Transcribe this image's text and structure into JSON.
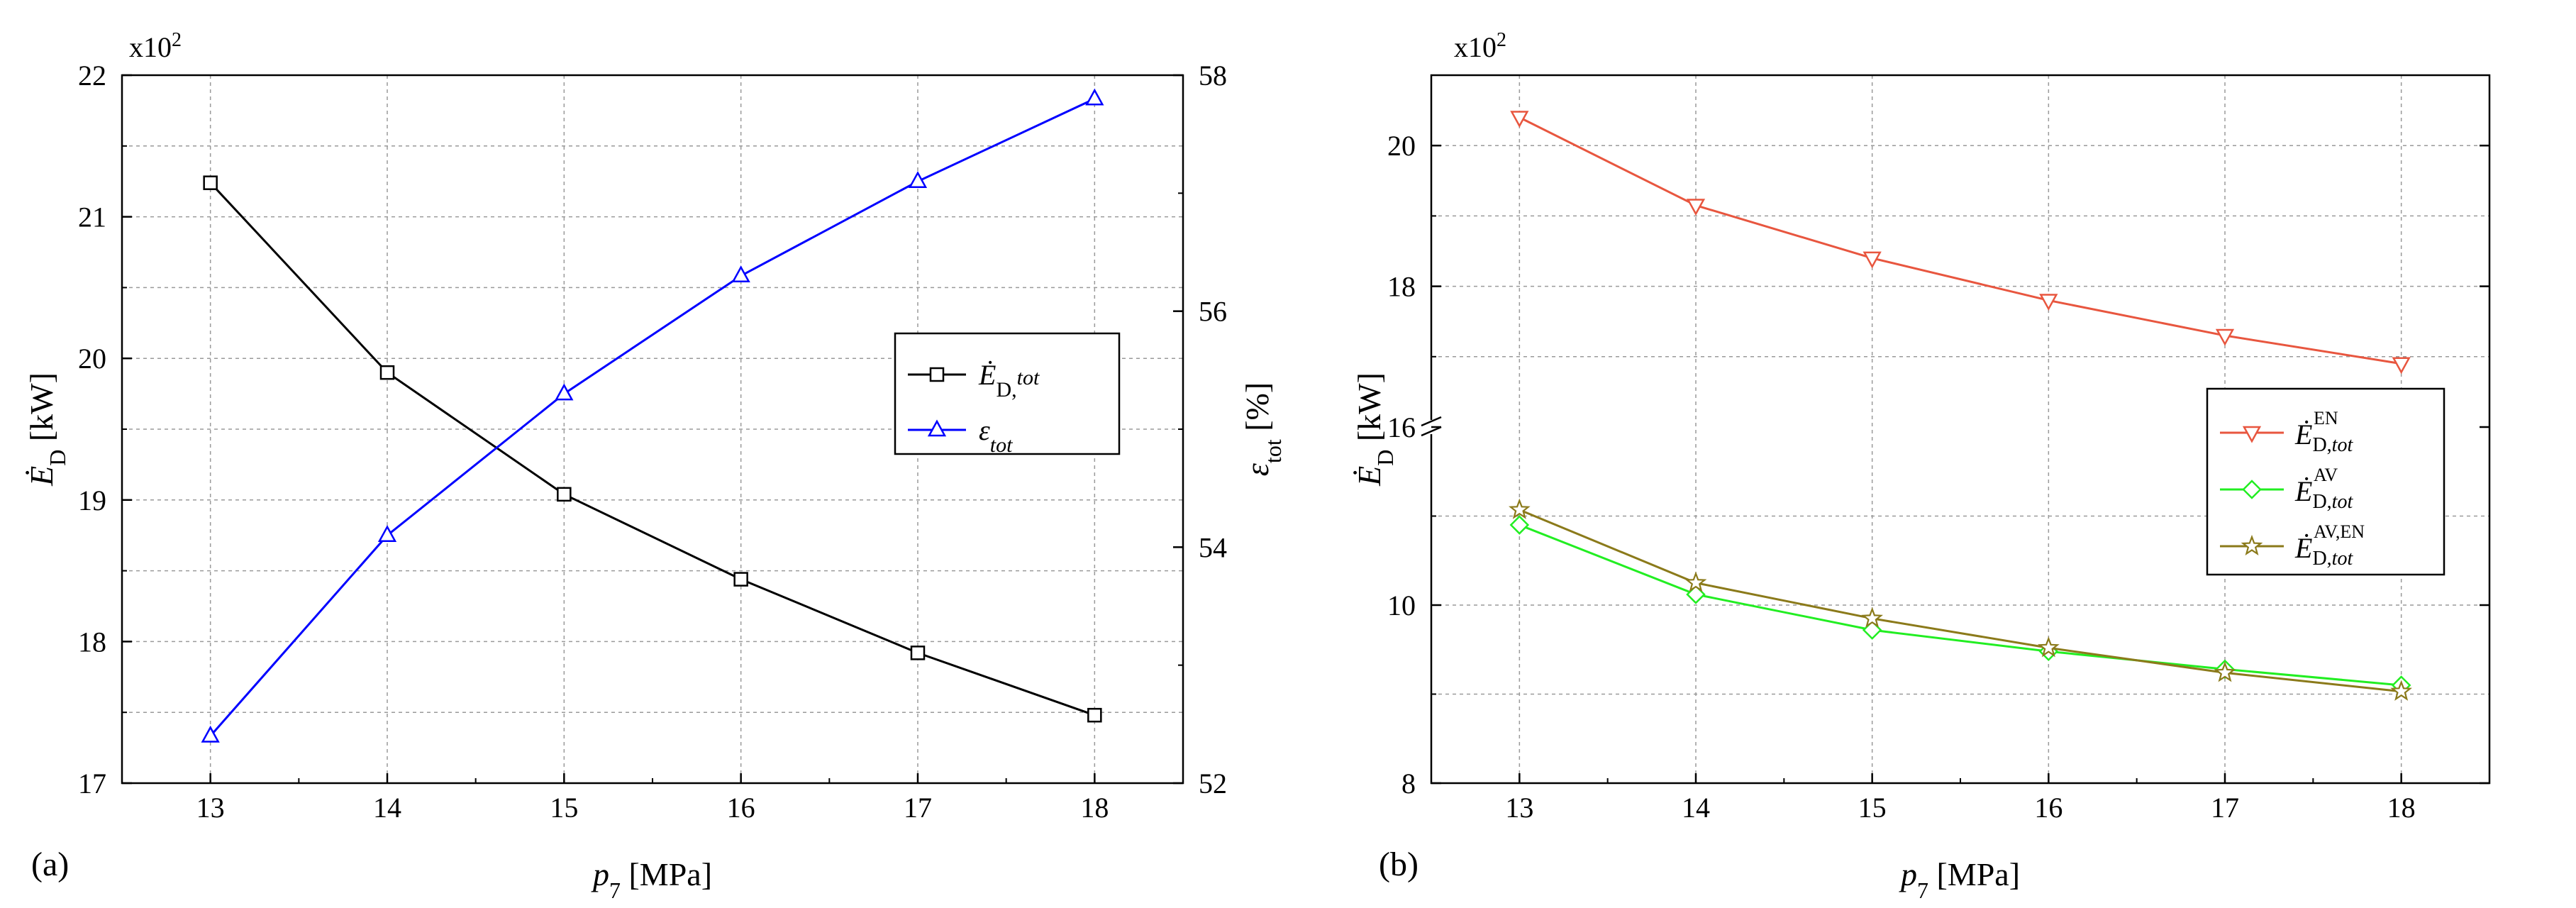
{
  "chart_data": [
    {
      "type": "line",
      "panel_label": "(a)",
      "multiplier": "x10",
      "multiplier_exp": "2",
      "xlabel": {
        "sym": "p",
        "sub": "7",
        "unit": " [MPa]"
      },
      "ylabel": {
        "sym": "Ė",
        "sub": "D",
        "unit": " [kW]"
      },
      "y2label": {
        "sym": "ε",
        "sub": "tot",
        "unit": " [%]"
      },
      "xlim": [
        12.5,
        18.5
      ],
      "ylim": [
        17,
        22
      ],
      "y2lim": [
        52,
        58
      ],
      "x_ticks": [
        "13",
        "14",
        "15",
        "16",
        "17",
        "18"
      ],
      "y_ticks": [
        "17",
        "18",
        "19",
        "20",
        "21",
        "22"
      ],
      "y2_ticks": [
        "52",
        "54",
        "56",
        "58"
      ],
      "x": [
        13,
        14,
        15,
        16,
        17,
        18
      ],
      "series": [
        {
          "name": "Ė_D,tot",
          "label_sym": "Ė",
          "label_sub": "D,",
          "label_sub_it": "tot",
          "axis": "left",
          "marker": "square",
          "color": "#000000",
          "values": [
            21.24,
            19.9,
            19.04,
            18.44,
            17.92,
            17.48
          ]
        },
        {
          "name": "ε_tot",
          "label_sym": "ε",
          "label_sub": "",
          "label_sub_it": "tot",
          "axis": "right",
          "marker": "triangle-up",
          "color": "#0000ff",
          "values": [
            52.4,
            54.1,
            55.3,
            56.3,
            57.1,
            57.8
          ]
        }
      ],
      "legend_position": "center-right"
    },
    {
      "type": "line",
      "panel_label": "(b)",
      "multiplier": "x10",
      "multiplier_exp": "2",
      "xlabel": {
        "sym": "p",
        "sub": "7",
        "unit": " [MPa]"
      },
      "ylabel": {
        "sym": "Ė",
        "sub": "D",
        "unit": " [kW]"
      },
      "broken_axis": true,
      "xlim": [
        12.5,
        18.5
      ],
      "ylim_upper": [
        16,
        21
      ],
      "ylim_lower": [
        8,
        12
      ],
      "x_ticks": [
        "13",
        "14",
        "15",
        "16",
        "17",
        "18"
      ],
      "y_ticks_upper": [
        "16",
        "18",
        "20"
      ],
      "y_ticks_lower": [
        "8",
        "10"
      ],
      "x": [
        13,
        14,
        15,
        16,
        17,
        18
      ],
      "series": [
        {
          "name": "Ė_D,tot^EN",
          "label_sym": "Ė",
          "label_sup": "EN",
          "label_sub": "D,",
          "label_sub_it": "tot",
          "segment": "upper",
          "marker": "triangle-down",
          "color": "#e8563f",
          "values": [
            20.4,
            19.15,
            18.4,
            17.8,
            17.3,
            16.9
          ]
        },
        {
          "name": "Ė_D,tot^AV",
          "label_sym": "Ė",
          "label_sup": "AV",
          "label_sub": "D,",
          "label_sub_it": "tot",
          "segment": "lower",
          "marker": "diamond",
          "color": "#22ee22",
          "values": [
            10.9,
            10.12,
            9.72,
            9.48,
            9.28,
            9.1
          ]
        },
        {
          "name": "Ė_D,tot^AV,EN",
          "label_sym": "Ė",
          "label_sup": "AV,EN",
          "label_sub": "D,",
          "label_sub_it": "tot",
          "segment": "lower",
          "marker": "star",
          "color": "#8b7a1a",
          "values": [
            11.07,
            10.25,
            9.85,
            9.52,
            9.24,
            9.03
          ]
        }
      ],
      "legend_position": "center-right"
    }
  ]
}
